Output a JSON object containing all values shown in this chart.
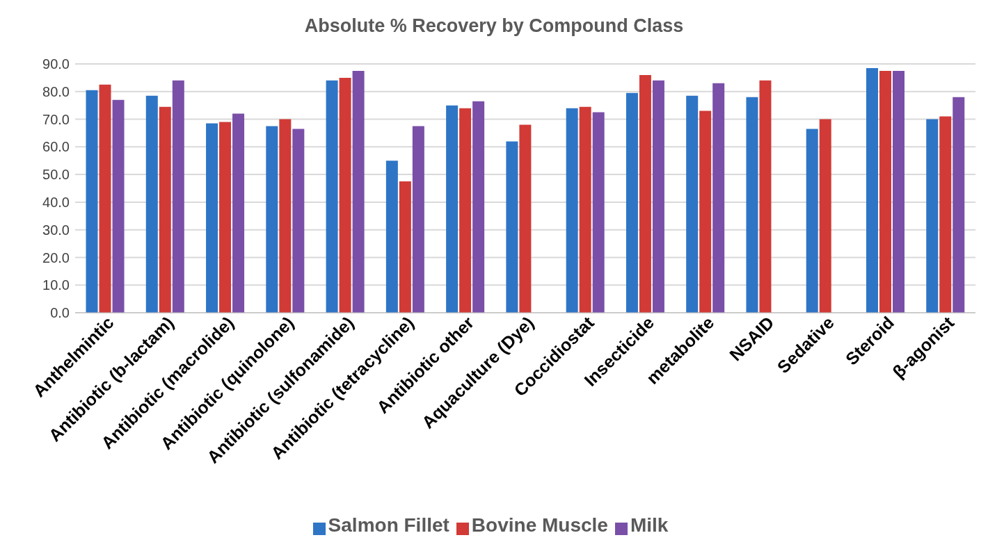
{
  "chart_data": {
    "type": "bar",
    "title": "Absolute % Recovery by Compound Class",
    "categories": [
      "Anthelmintic",
      "Antibiotic (b-lactam)",
      "Antibiotic (macrolide)",
      "Antibiotic (quinolone)",
      "Antibiotic (sulfonamide)",
      "Antibiotic (tetracycline)",
      "Antibiotic other",
      "Aquaculture (Dye)",
      "Coccidiostat",
      "Insecticide",
      "metabolite",
      "NSAID",
      "Sedative",
      "Steroid",
      "β-agonist"
    ],
    "series": [
      {
        "name": "Salmon Fillet",
        "color": "#2e75c6",
        "values": [
          80.5,
          78.5,
          68.5,
          67.5,
          84,
          55,
          75,
          62,
          74,
          79.5,
          78.5,
          78,
          66.5,
          88.5,
          70
        ]
      },
      {
        "name": "Bovine Muscle",
        "color": "#d13a36",
        "values": [
          82.5,
          74.5,
          69,
          70,
          85,
          47.5,
          74,
          68,
          74.5,
          86,
          73,
          84,
          70,
          87.5,
          71
        ]
      },
      {
        "name": "Milk",
        "color": "#7a4fa8",
        "values": [
          77,
          84,
          72,
          66.5,
          87.5,
          67.5,
          76.5,
          0,
          72.5,
          84,
          83,
          0,
          0,
          87.5,
          78
        ]
      }
    ],
    "ylim": [
      0,
      90
    ],
    "yticks": [
      {
        "value": 0,
        "label": "0.0"
      },
      {
        "value": 10,
        "label": "10.0"
      },
      {
        "value": 20,
        "label": "20.0"
      },
      {
        "value": 30,
        "label": "30.0"
      },
      {
        "value": 40,
        "label": "40.0"
      },
      {
        "value": 50,
        "label": "50.0"
      },
      {
        "value": 60,
        "label": "60.0"
      },
      {
        "value": 70,
        "label": "70.0"
      },
      {
        "value": 80,
        "label": "80.0"
      },
      {
        "value": 90,
        "label": "90.0"
      }
    ],
    "grid": "y",
    "legend": "bottom"
  }
}
